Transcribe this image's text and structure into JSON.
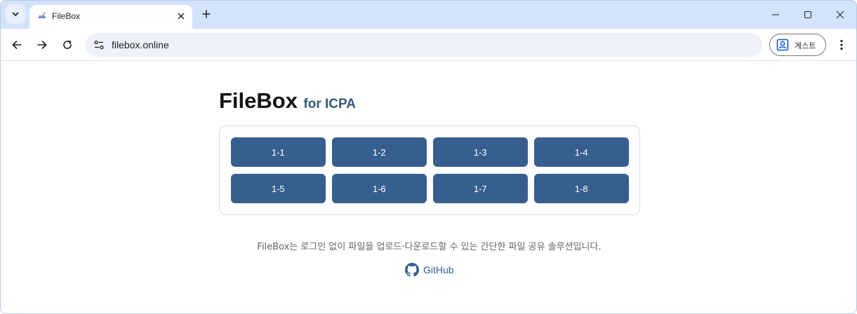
{
  "browser": {
    "tab_title": "FileBox",
    "url": "filebox.online",
    "guest_label": "게스트"
  },
  "page": {
    "title": "FileBox",
    "subtitle": "for ICPA",
    "buttons": [
      "1-1",
      "1-2",
      "1-3",
      "1-4",
      "1-5",
      "1-6",
      "1-7",
      "1-8"
    ],
    "description": "FileBox는 로그인 없이 파일을 업로드·다운로드할 수 있는 간단한 파일 공유 솔루션입니다.",
    "github_label": "GitHub"
  },
  "colors": {
    "tab_strip": "#d3e3fd",
    "button_bg": "#365f8f",
    "subtitle": "#36577e"
  }
}
